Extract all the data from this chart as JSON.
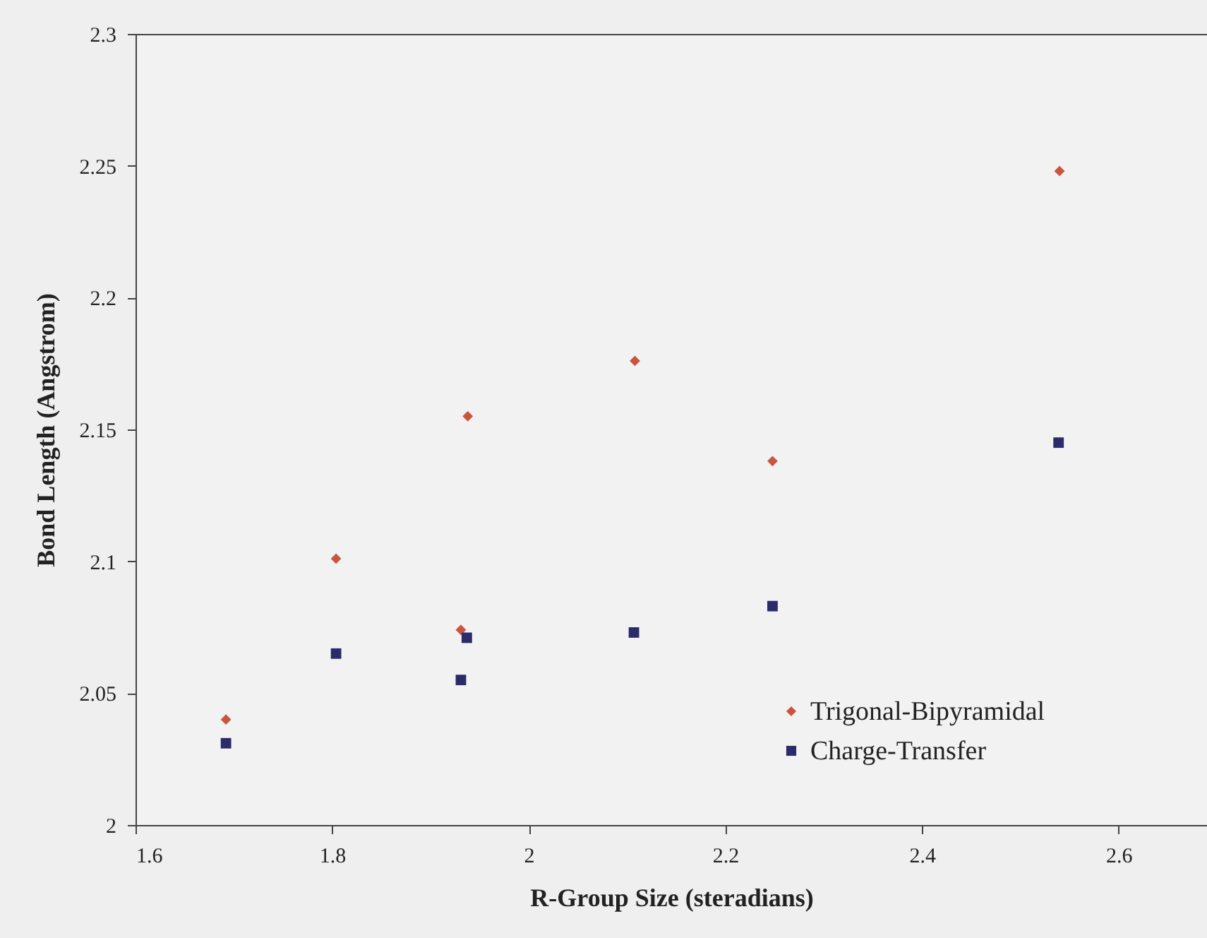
{
  "chart_data": {
    "type": "scatter",
    "xlabel": "R-Group Size (steradians)",
    "ylabel": "Bond Length (Angstrom)",
    "xlim": [
      1.6,
      2.69
    ],
    "xticks": [
      1.6,
      1.8,
      {
        "value": 2,
        "label": "2"
      },
      2.2,
      2.4,
      2.6
    ],
    "ylim": [
      2,
      2.3
    ],
    "yticks": [
      {
        "value": 2,
        "label": "2"
      },
      2.05,
      2.1,
      2.15,
      2.2,
      2.25,
      2.3
    ],
    "grid": false,
    "legend": "bottom right",
    "series": [
      {
        "name": "Trigonal-Bipyramidal",
        "color": "#c9553f",
        "marker": "diamond",
        "x": [
          1.692,
          1.804,
          1.931,
          1.938,
          2.108,
          2.248,
          2.54
        ],
        "values": [
          2.04,
          2.101,
          2.074,
          2.155,
          2.176,
          2.138,
          2.248
        ]
      },
      {
        "name": "Charge-Transfer",
        "color": "#2b2b6b",
        "marker": "square",
        "x": [
          1.692,
          1.804,
          1.931,
          1.937,
          2.107,
          2.248,
          2.539
        ],
        "values": [
          2.031,
          2.065,
          2.055,
          2.071,
          2.073,
          2.083,
          2.145
        ]
      }
    ]
  }
}
